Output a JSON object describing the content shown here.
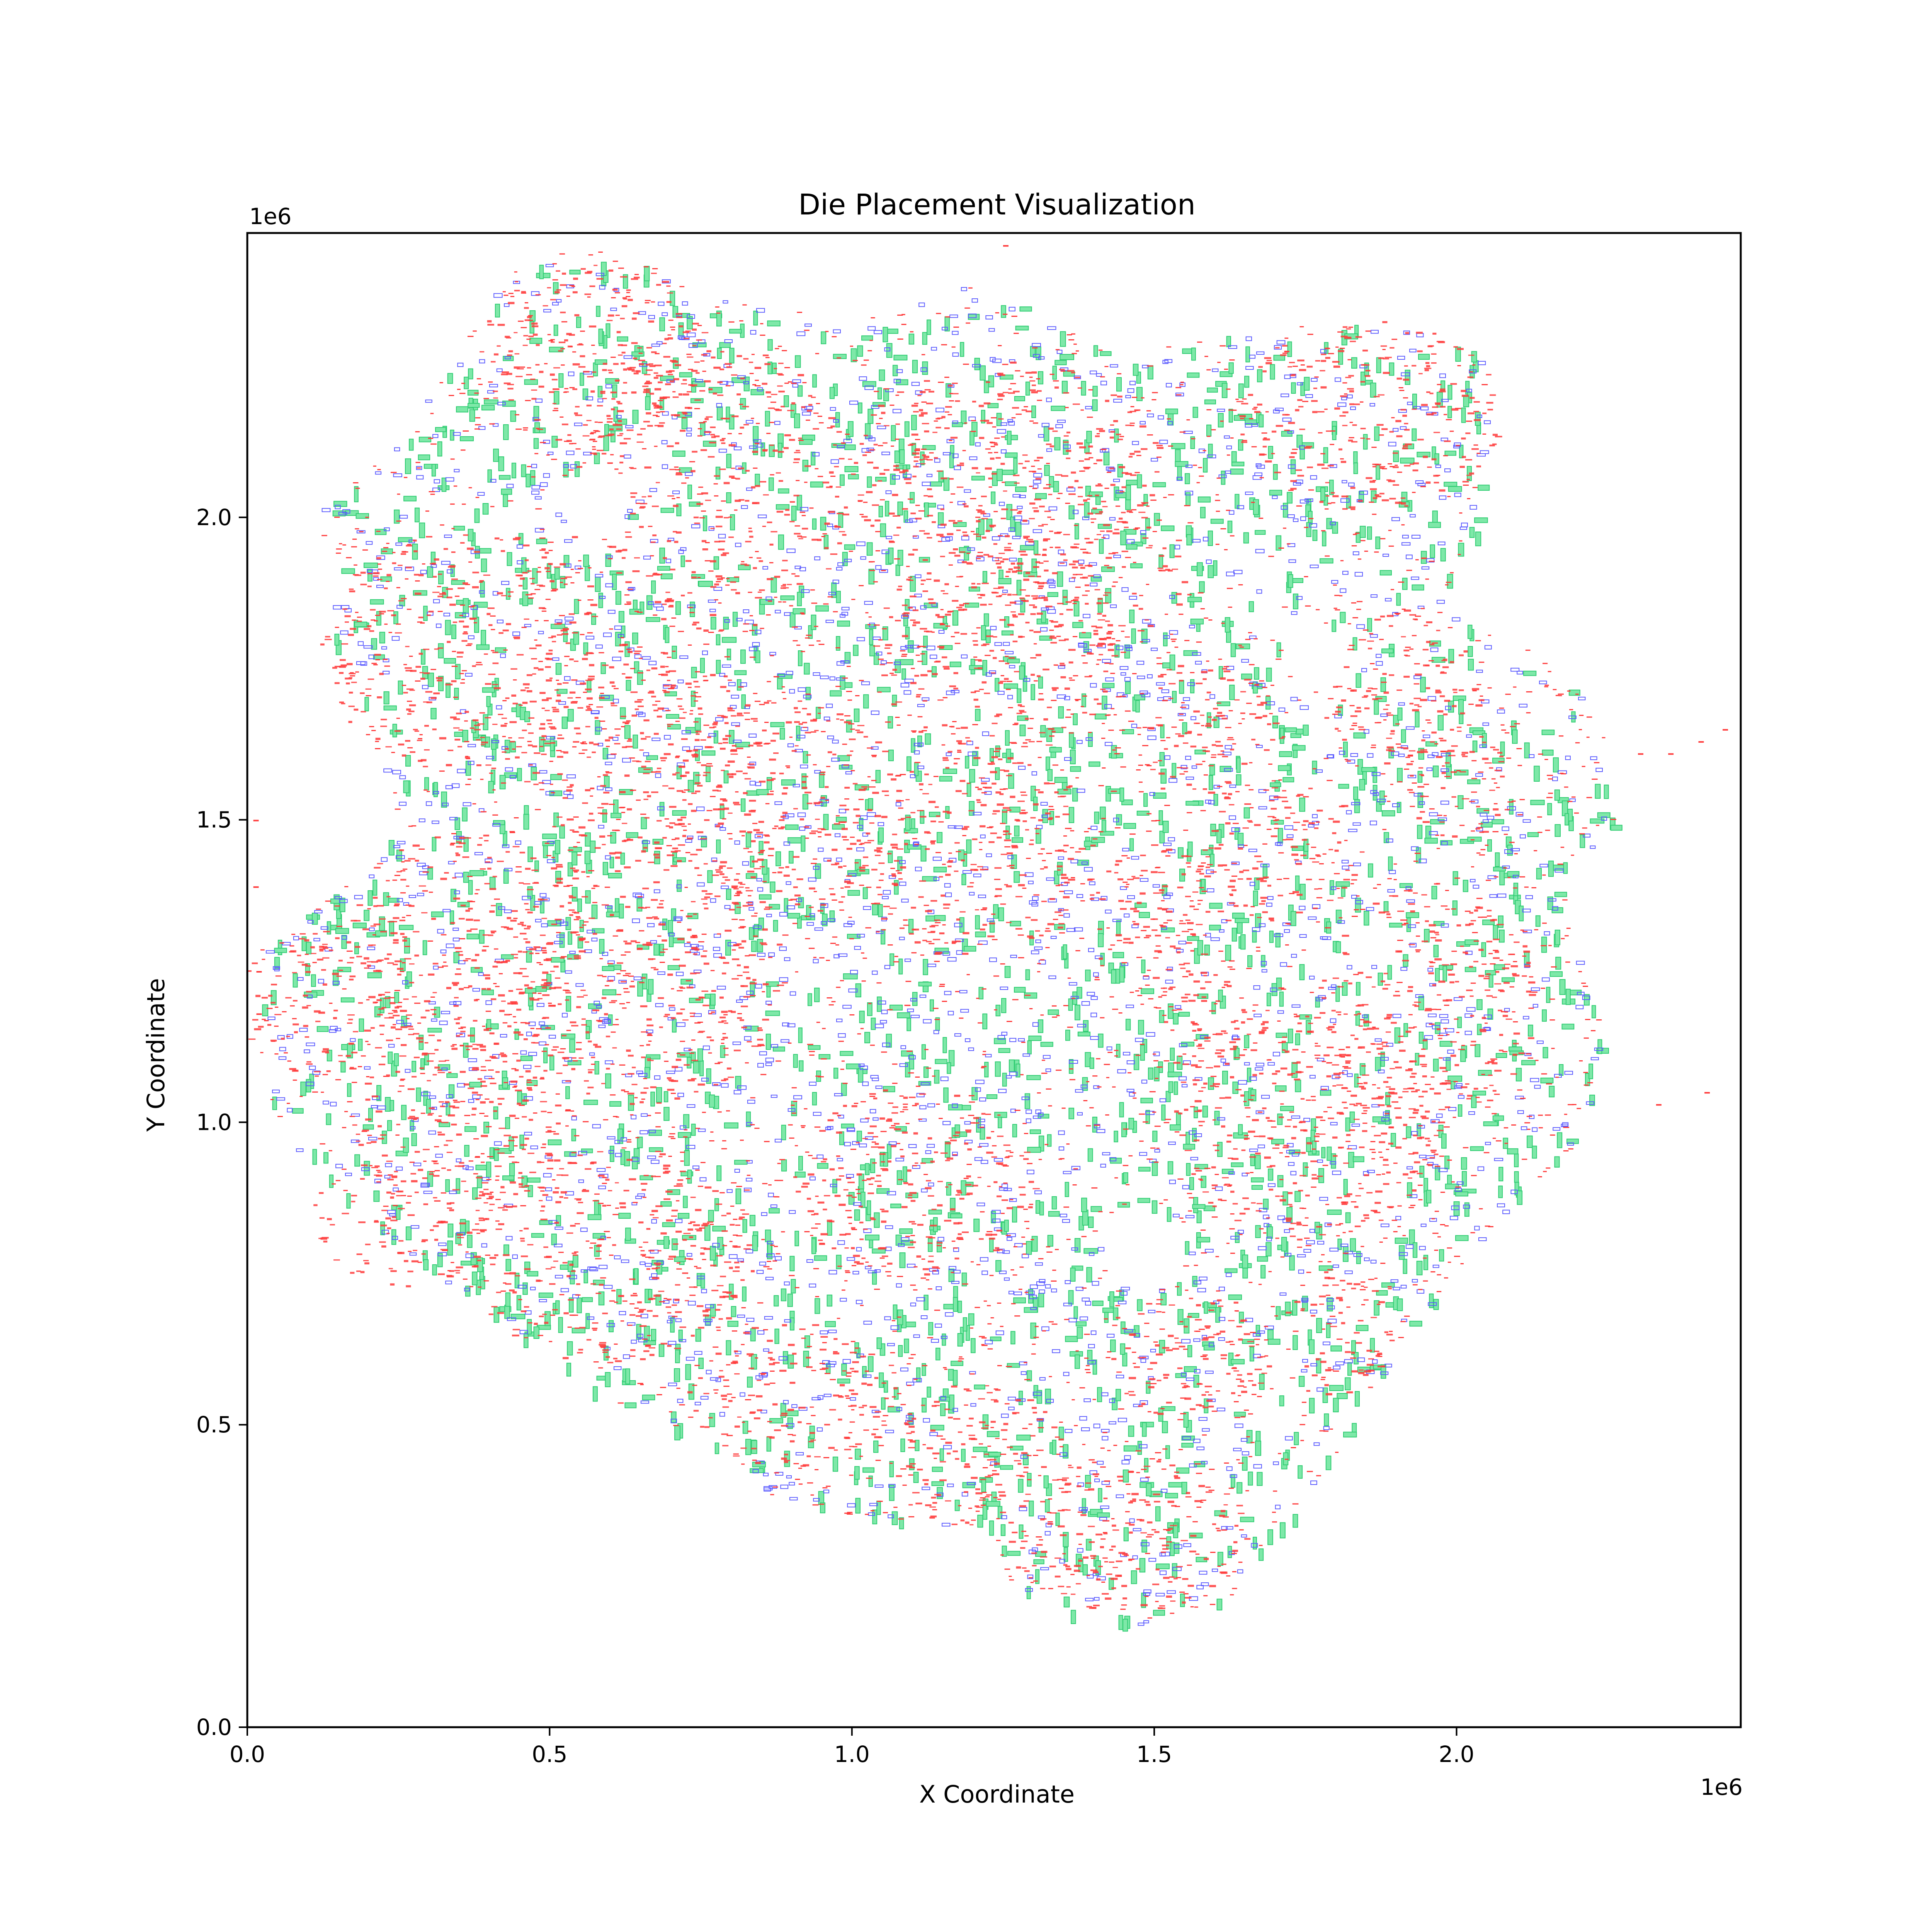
{
  "chart_data": {
    "type": "scatter",
    "title": "Die Placement Visualization",
    "xlabel": "X Coordinate",
    "ylabel": "Y Coordinate",
    "x_offset_label": "1e6",
    "y_offset_label": "1e6",
    "xlim": [
      0,
      2470000
    ],
    "ylim": [
      0,
      2470000
    ],
    "x_ticks": [
      0,
      500000,
      1000000,
      1500000,
      2000000
    ],
    "x_tick_labels": [
      "0.0",
      "0.5",
      "1.0",
      "1.5",
      "2.0"
    ],
    "y_ticks": [
      0,
      500000,
      1000000,
      1500000,
      2000000
    ],
    "y_tick_labels": [
      "0.0",
      "0.5",
      "1.0",
      "1.5",
      "2.0"
    ],
    "grid": false,
    "colors": {
      "standard_cells": "#ff3b3b",
      "small_macros": "#5b5bff",
      "large_macros": "#2ecc71",
      "large_macros_fill": "#7ee8a8"
    },
    "series": [
      {
        "kind": "standard-cell-clusters",
        "color": "#ff3b3b",
        "clusters": [
          {
            "x": 580000,
            "y": 2270000,
            "rx": 200000,
            "ry": 150000
          },
          {
            "x": 760000,
            "y": 2050000,
            "rx": 240000,
            "ry": 240000
          },
          {
            "x": 1250000,
            "y": 2080000,
            "rx": 260000,
            "ry": 180000
          },
          {
            "x": 1850000,
            "y": 2170000,
            "rx": 220000,
            "ry": 160000
          },
          {
            "x": 360000,
            "y": 1780000,
            "rx": 240000,
            "ry": 200000
          },
          {
            "x": 640000,
            "y": 1620000,
            "rx": 200000,
            "ry": 180000
          },
          {
            "x": 880000,
            "y": 1520000,
            "rx": 200000,
            "ry": 180000
          },
          {
            "x": 1230000,
            "y": 1780000,
            "rx": 200000,
            "ry": 180000
          },
          {
            "x": 1580000,
            "y": 1650000,
            "rx": 120000,
            "ry": 120000
          },
          {
            "x": 1900000,
            "y": 1720000,
            "rx": 140000,
            "ry": 130000
          },
          {
            "x": 120000,
            "y": 1200000,
            "rx": 140000,
            "ry": 120000
          },
          {
            "x": 350000,
            "y": 1300000,
            "rx": 200000,
            "ry": 180000
          },
          {
            "x": 650000,
            "y": 1250000,
            "rx": 240000,
            "ry": 220000
          },
          {
            "x": 340000,
            "y": 1000000,
            "rx": 180000,
            "ry": 150000
          },
          {
            "x": 260000,
            "y": 840000,
            "rx": 160000,
            "ry": 110000
          },
          {
            "x": 600000,
            "y": 780000,
            "rx": 240000,
            "ry": 180000
          },
          {
            "x": 1200000,
            "y": 1450000,
            "rx": 200000,
            "ry": 180000
          },
          {
            "x": 1500000,
            "y": 1340000,
            "rx": 120000,
            "ry": 120000
          },
          {
            "x": 1580000,
            "y": 1170000,
            "rx": 110000,
            "ry": 80000
          },
          {
            "x": 1950000,
            "y": 1200000,
            "rx": 180000,
            "ry": 200000
          },
          {
            "x": 1750000,
            "y": 1000000,
            "rx": 220000,
            "ry": 200000
          },
          {
            "x": 1100000,
            "y": 900000,
            "rx": 200000,
            "ry": 160000
          },
          {
            "x": 1550000,
            "y": 620000,
            "rx": 140000,
            "ry": 110000
          },
          {
            "x": 1800000,
            "y": 650000,
            "rx": 90000,
            "ry": 110000
          },
          {
            "x": 1450000,
            "y": 320000,
            "rx": 200000,
            "ry": 130000
          },
          {
            "x": 1200000,
            "y": 450000,
            "rx": 150000,
            "ry": 120000
          },
          {
            "x": 900000,
            "y": 550000,
            "rx": 180000,
            "ry": 120000
          },
          {
            "x": 2000000,
            "y": 1560000,
            "rx": 90000,
            "ry": 90000
          },
          {
            "x": 1400000,
            "y": 1900000,
            "rx": 160000,
            "ry": 120000
          },
          {
            "x": 1700000,
            "y": 1450000,
            "rx": 140000,
            "ry": 120000
          }
        ]
      },
      {
        "kind": "small-macro-distribution",
        "color": "#5b5bff"
      },
      {
        "kind": "large-macro-distribution",
        "color": "#2ecc71"
      }
    ]
  }
}
